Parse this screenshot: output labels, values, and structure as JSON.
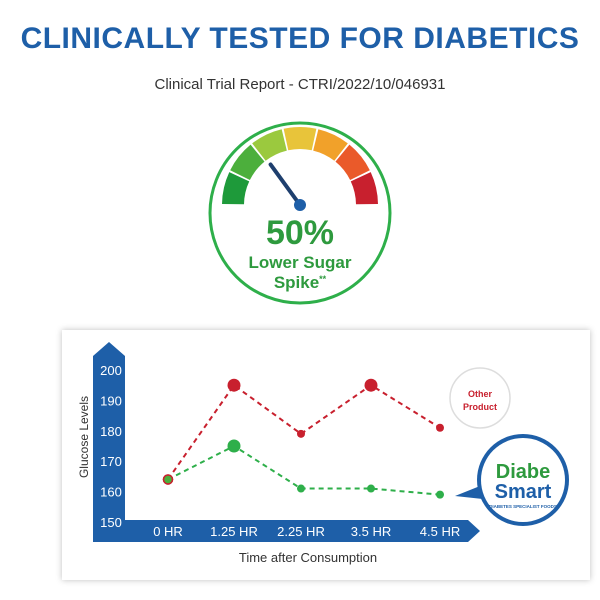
{
  "header": {
    "title": "CLINICALLY TESTED FOR DIABETICS",
    "subtitle": "Clinical Trial Report - CTRI/2022/10/046931"
  },
  "gauge": {
    "value_text": "50%",
    "label_line1": "Lower Sugar",
    "label_line2": "Spike",
    "label_mark": "**",
    "needle_fraction": 0.3,
    "segment_colors": [
      "#1e9a3a",
      "#4caf3c",
      "#9bc93e",
      "#e8c43a",
      "#f1a12a",
      "#ea5a2a",
      "#c8202e"
    ],
    "ring_color": "#2eaf4a",
    "text_color": "#2e9a3e"
  },
  "badges": {
    "other_line1": "Other",
    "other_line2": "Product",
    "brand_line1": "Diabe",
    "brand_line2": "Smart",
    "brand_tagline": "DIABETES SPECIALIST FOODS"
  },
  "chart_data": {
    "type": "line",
    "categories": [
      "0 HR",
      "1.25 HR",
      "2.25 HR",
      "3.5 HR",
      "4.5 HR"
    ],
    "xlabel": "Time after Consumption",
    "ylabel": "Glucose Levels",
    "ylim": [
      150,
      200
    ],
    "yticks": [
      150,
      160,
      170,
      180,
      190,
      200
    ],
    "series": [
      {
        "name": "Other Product",
        "values": [
          164,
          195,
          179,
          195,
          181
        ],
        "color": "#c8202e"
      },
      {
        "name": "DiabeSmart",
        "values": [
          164,
          175,
          161,
          161,
          159
        ],
        "color": "#2eaf4a"
      }
    ],
    "axis_color": "#1e5fa8"
  }
}
